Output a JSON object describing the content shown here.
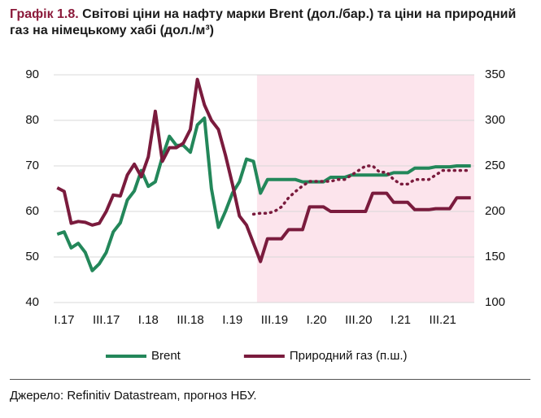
{
  "chart_data": {
    "type": "line",
    "title_label": "Графік 1.8.",
    "title": "Світові ціни на нафту марки Brent (дол./бар.) та ціни на природний газ на німецькому хабі (дол./м³)",
    "source": "Джерело: Refinitiv Datastream, прогноз НБУ.",
    "categories": [
      "I.17",
      null,
      null,
      null,
      null,
      null,
      "III.17",
      null,
      null,
      null,
      null,
      null,
      "I.18",
      null,
      null,
      null,
      null,
      null,
      "III.18",
      null,
      null,
      null,
      null,
      null,
      "I.19",
      null,
      null,
      null,
      null,
      null,
      "III.19",
      null,
      null,
      null,
      null,
      null,
      "I.20",
      null,
      null,
      null,
      null,
      null,
      "III.20",
      null,
      null,
      null,
      null,
      null,
      "I.21",
      null,
      null,
      null,
      null,
      null,
      "III.21",
      null,
      null,
      null,
      null,
      null
    ],
    "ylim": [
      40,
      90
    ],
    "yticks": [
      40,
      50,
      60,
      70,
      80,
      90
    ],
    "y2lim": [
      100,
      350
    ],
    "y2ticks": [
      100,
      150,
      200,
      250,
      300,
      350
    ],
    "grid": true,
    "forecast_shade": {
      "from": 29,
      "color": "#fce4ec"
    },
    "series": [
      {
        "name": "Brent",
        "color": "#23875a",
        "values": [
          55,
          55.5,
          52,
          53,
          51,
          47,
          48.5,
          51,
          55.5,
          57.5,
          62.5,
          64.5,
          69,
          65.5,
          66.5,
          72,
          76.5,
          74.5,
          74.5,
          73,
          79,
          80.5,
          65,
          56.5,
          60,
          64,
          66.5,
          71.5,
          71,
          64,
          67,
          67,
          67,
          67,
          67,
          66.5,
          66.5,
          66.5,
          66.5,
          67.5,
          67.5,
          67.5,
          68,
          68,
          68,
          68,
          68,
          68,
          68.5,
          68.5,
          68.5,
          69.5,
          69.5,
          69.5,
          69.8,
          69.8,
          69.8,
          70,
          70,
          70
        ]
      },
      {
        "name": "Природний газ (п.ш.)",
        "color": "#7a1b3d",
        "axis": "y2",
        "values": [
          226,
          222,
          187,
          189,
          188,
          185,
          187,
          200,
          218,
          217,
          240,
          252,
          238,
          260,
          310,
          255,
          270,
          270,
          275,
          290,
          345,
          317,
          300,
          290,
          262,
          230,
          195,
          185,
          165,
          145,
          170,
          170,
          170,
          180,
          180,
          180,
          205,
          205,
          205,
          200,
          200,
          200,
          200,
          200,
          200,
          220,
          220,
          220,
          210,
          210,
          210,
          202,
          202,
          202,
          203,
          203,
          203,
          215,
          215,
          215
        ]
      },
      {
        "color": "#7a1b3d",
        "axis": "y2",
        "dash": true,
        "values": [
          null,
          null,
          null,
          null,
          null,
          null,
          null,
          null,
          null,
          null,
          null,
          null,
          null,
          null,
          null,
          null,
          null,
          null,
          null,
          null,
          null,
          null,
          null,
          null,
          null,
          null,
          null,
          null,
          197,
          198,
          198,
          200,
          205,
          215,
          222,
          228,
          233,
          233,
          233,
          233,
          235,
          235,
          240,
          245,
          250,
          250,
          243,
          243,
          235,
          230,
          230,
          235,
          235,
          235,
          240,
          245,
          245,
          245,
          245,
          245
        ]
      }
    ]
  }
}
